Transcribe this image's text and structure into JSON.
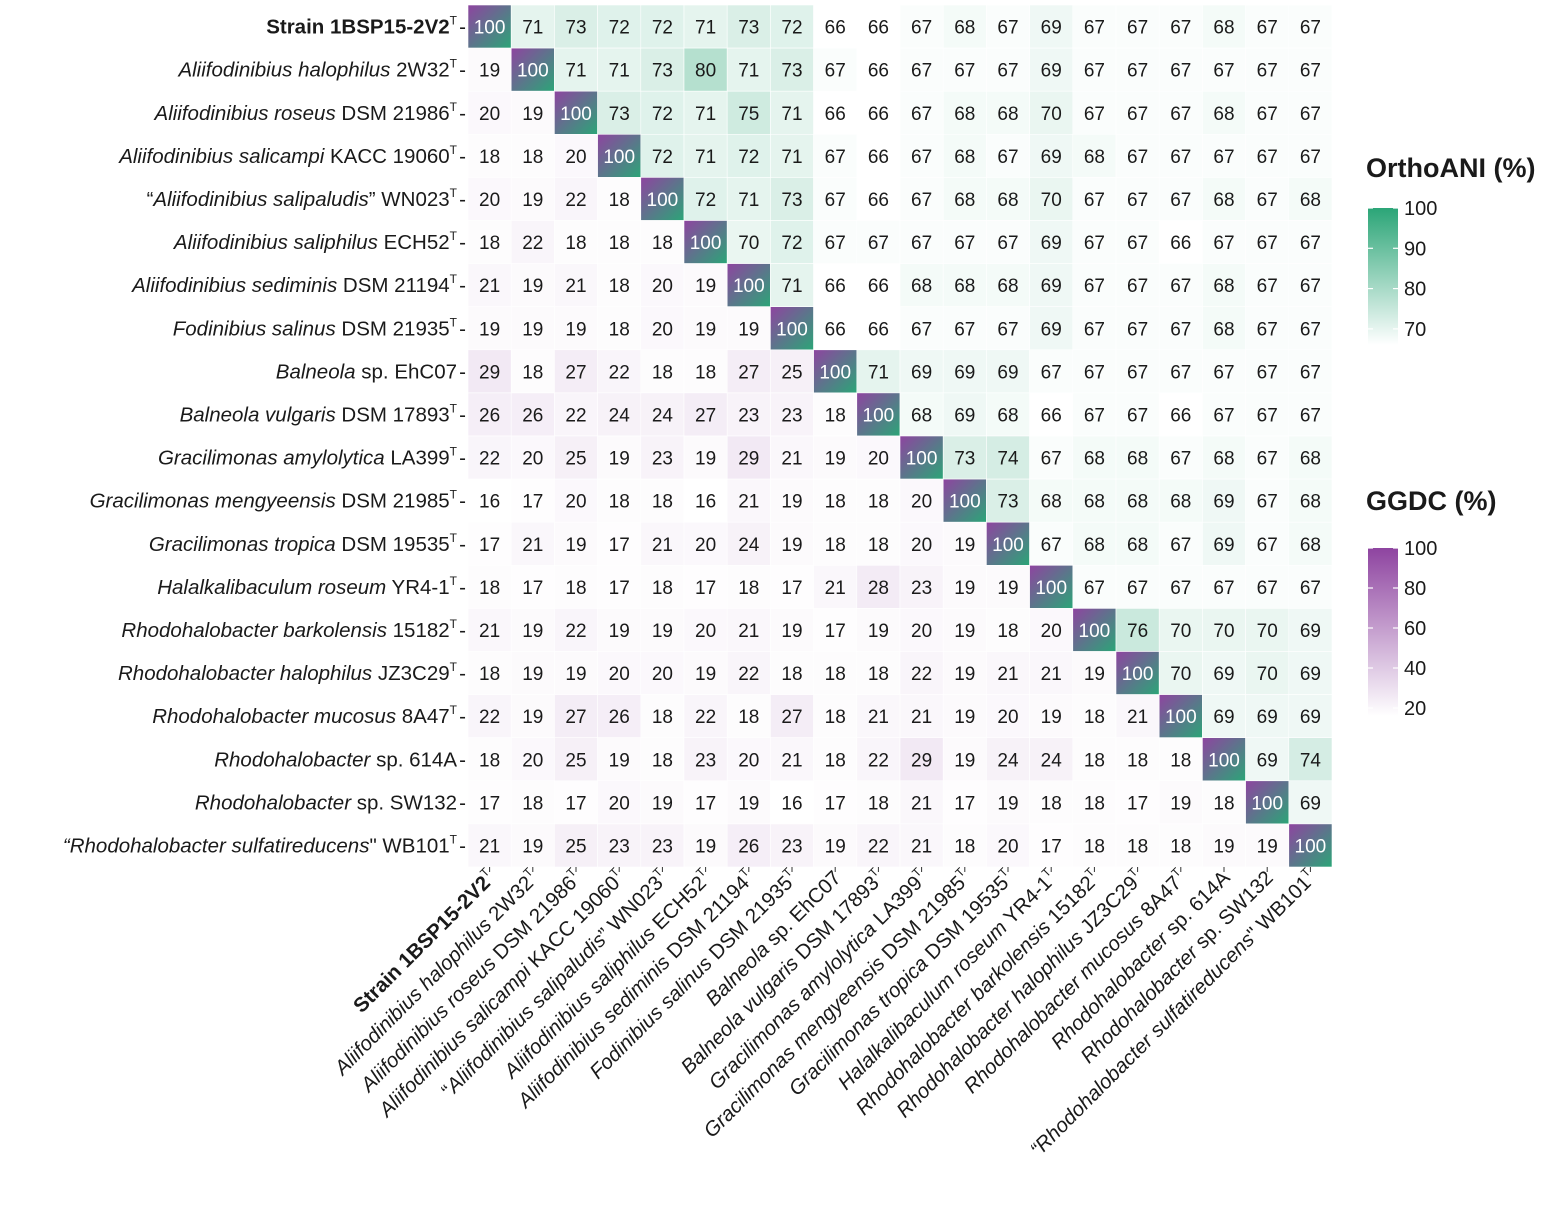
{
  "chart_data": {
    "type": "heatmap",
    "title": "",
    "description_note": "",
    "upper_metric": "OrthoANI (%)",
    "lower_metric": "GGDC (%)",
    "labels": [
      {
        "parts": [
          {
            "t": "Strain 1BSP15-2V2",
            "b": true
          }
        ],
        "sup": "T"
      },
      {
        "parts": [
          {
            "t": "Aliifodinibius halophilus",
            "i": true
          },
          {
            "t": " 2W32"
          }
        ],
        "sup": "T"
      },
      {
        "parts": [
          {
            "t": "Aliifodinibius roseus",
            "i": true
          },
          {
            "t": " DSM 21986"
          }
        ],
        "sup": "T"
      },
      {
        "parts": [
          {
            "t": "Aliifodinibius salicampi",
            "i": true
          },
          {
            "t": " KACC 19060"
          }
        ],
        "sup": "T"
      },
      {
        "parts": [
          {
            "t": "“"
          },
          {
            "t": "Aliifodinibius salipaludis",
            "i": true
          },
          {
            "t": "” WN023"
          }
        ],
        "sup": "T"
      },
      {
        "parts": [
          {
            "t": "Aliifodinibius saliphilus",
            "i": true
          },
          {
            "t": " ECH52"
          }
        ],
        "sup": "T"
      },
      {
        "parts": [
          {
            "t": "Aliifodinibius sediminis",
            "i": true
          },
          {
            "t": " DSM 21194"
          }
        ],
        "sup": "T"
      },
      {
        "parts": [
          {
            "t": "Fodinibius salinus",
            "i": true
          },
          {
            "t": " DSM 21935"
          }
        ],
        "sup": "T"
      },
      {
        "parts": [
          {
            "t": "Balneola",
            "i": true
          },
          {
            "t": " sp. EhC07"
          }
        ],
        "sup": ""
      },
      {
        "parts": [
          {
            "t": "Balneola vulgaris",
            "i": true
          },
          {
            "t": " DSM 17893"
          }
        ],
        "sup": "T"
      },
      {
        "parts": [
          {
            "t": "Gracilimonas amylolytica",
            "i": true
          },
          {
            "t": " LA399"
          }
        ],
        "sup": "T"
      },
      {
        "parts": [
          {
            "t": "Gracilimonas mengyeensis",
            "i": true
          },
          {
            "t": " DSM 21985"
          }
        ],
        "sup": "T"
      },
      {
        "parts": [
          {
            "t": "Gracilimonas tropica",
            "i": true
          },
          {
            "t": " DSM 19535"
          }
        ],
        "sup": "T"
      },
      {
        "parts": [
          {
            "t": "Halalkalibaculum roseum",
            "i": true
          },
          {
            "t": " YR4-1"
          }
        ],
        "sup": "T"
      },
      {
        "parts": [
          {
            "t": "Rhodohalobacter barkolensis",
            "i": true
          },
          {
            "t": " 15182"
          }
        ],
        "sup": "T"
      },
      {
        "parts": [
          {
            "t": "Rhodohalobacter halophilus",
            "i": true
          },
          {
            "t": " JZ3C29"
          }
        ],
        "sup": "T"
      },
      {
        "parts": [
          {
            "t": "Rhodohalobacter mucosus",
            "i": true
          },
          {
            "t": " 8A47"
          }
        ],
        "sup": "T"
      },
      {
        "parts": [
          {
            "t": "Rhodohalobacter",
            "i": true
          },
          {
            "t": " sp. 614A"
          }
        ],
        "sup": ""
      },
      {
        "parts": [
          {
            "t": "Rhodohalobacter",
            "i": true
          },
          {
            "t": " sp. SW132"
          }
        ],
        "sup": ""
      },
      {
        "parts": [
          {
            "t": "“Rhodohalobacter sulfatireducens",
            "i": true
          },
          {
            "t": "\" WB101"
          }
        ],
        "sup": "T"
      }
    ],
    "matrix": [
      [
        100,
        71,
        73,
        72,
        72,
        71,
        73,
        72,
        66,
        66,
        67,
        68,
        67,
        69,
        67,
        67,
        67,
        68,
        67,
        67
      ],
      [
        19,
        100,
        71,
        71,
        73,
        80,
        71,
        73,
        67,
        66,
        67,
        67,
        67,
        69,
        67,
        67,
        67,
        67,
        67,
        67
      ],
      [
        20,
        19,
        100,
        73,
        72,
        71,
        75,
        71,
        66,
        66,
        67,
        68,
        68,
        70,
        67,
        67,
        67,
        68,
        67,
        67
      ],
      [
        18,
        18,
        20,
        100,
        72,
        71,
        72,
        71,
        67,
        66,
        67,
        68,
        67,
        69,
        68,
        67,
        67,
        67,
        67,
        67
      ],
      [
        20,
        19,
        22,
        18,
        100,
        72,
        71,
        73,
        67,
        66,
        67,
        68,
        68,
        70,
        67,
        67,
        67,
        68,
        67,
        68
      ],
      [
        18,
        22,
        18,
        18,
        18,
        100,
        70,
        72,
        67,
        67,
        67,
        67,
        67,
        69,
        67,
        67,
        66,
        67,
        67,
        67
      ],
      [
        21,
        19,
        21,
        18,
        20,
        19,
        100,
        71,
        66,
        66,
        68,
        68,
        68,
        69,
        67,
        67,
        67,
        68,
        67,
        67
      ],
      [
        19,
        19,
        19,
        18,
        20,
        19,
        19,
        100,
        66,
        66,
        67,
        67,
        67,
        69,
        67,
        67,
        67,
        68,
        67,
        67
      ],
      [
        29,
        18,
        27,
        22,
        18,
        18,
        27,
        25,
        100,
        71,
        69,
        69,
        69,
        67,
        67,
        67,
        67,
        67,
        67,
        67
      ],
      [
        26,
        26,
        22,
        24,
        24,
        27,
        23,
        23,
        18,
        100,
        68,
        69,
        68,
        66,
        67,
        67,
        66,
        67,
        67,
        67
      ],
      [
        22,
        20,
        25,
        19,
        23,
        19,
        29,
        21,
        19,
        20,
        100,
        73,
        74,
        67,
        68,
        68,
        67,
        68,
        67,
        68
      ],
      [
        16,
        17,
        20,
        18,
        18,
        16,
        21,
        19,
        18,
        18,
        20,
        100,
        73,
        68,
        68,
        68,
        68,
        69,
        67,
        68
      ],
      [
        17,
        21,
        19,
        17,
        21,
        20,
        24,
        19,
        18,
        18,
        20,
        19,
        100,
        67,
        68,
        68,
        67,
        69,
        67,
        68
      ],
      [
        18,
        17,
        18,
        17,
        18,
        17,
        18,
        17,
        21,
        28,
        23,
        19,
        19,
        100,
        67,
        67,
        67,
        67,
        67,
        67
      ],
      [
        21,
        19,
        22,
        19,
        19,
        20,
        21,
        19,
        17,
        19,
        20,
        19,
        18,
        20,
        100,
        76,
        70,
        70,
        70,
        69
      ],
      [
        18,
        19,
        19,
        20,
        20,
        19,
        22,
        18,
        18,
        18,
        22,
        19,
        21,
        21,
        19,
        100,
        70,
        69,
        70,
        69
      ],
      [
        22,
        19,
        27,
        26,
        18,
        22,
        18,
        27,
        18,
        21,
        21,
        19,
        20,
        19,
        18,
        21,
        100,
        69,
        69,
        69
      ],
      [
        18,
        20,
        25,
        19,
        18,
        23,
        20,
        21,
        18,
        22,
        29,
        19,
        24,
        24,
        18,
        18,
        18,
        100,
        69,
        74
      ],
      [
        17,
        18,
        17,
        20,
        19,
        17,
        19,
        16,
        17,
        18,
        21,
        17,
        19,
        18,
        18,
        17,
        19,
        18,
        100,
        69
      ],
      [
        21,
        19,
        25,
        23,
        23,
        19,
        26,
        23,
        19,
        22,
        21,
        18,
        20,
        17,
        18,
        18,
        18,
        19,
        19,
        100
      ]
    ],
    "legends": [
      {
        "title": "OrthoANI (%)",
        "ticks": [
          100,
          90,
          80,
          70
        ],
        "range": [
          66,
          100
        ],
        "low_color": "#ffffff",
        "high_color": "#2ba577"
      },
      {
        "title": "GGDC (%)",
        "ticks": [
          100,
          80,
          60,
          40,
          20
        ],
        "range": [
          16,
          100
        ],
        "low_color": "#ffffff",
        "high_color": "#8e44a0"
      }
    ]
  }
}
